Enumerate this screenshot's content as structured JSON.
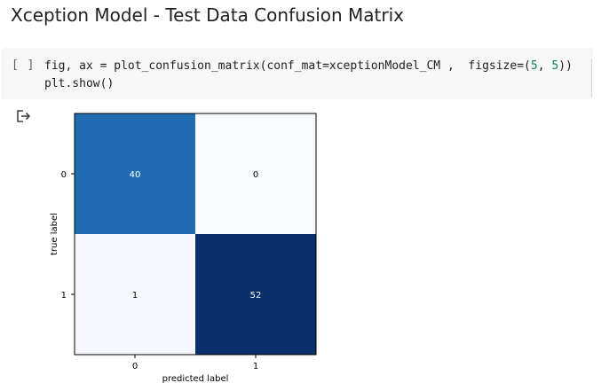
{
  "heading": {
    "title": "Xception Model - Test Data Confusion Matrix"
  },
  "code_cell": {
    "run_label": "[ ]",
    "line1_pre": "fig, ax = plot_confusion_matrix(conf_mat=xceptionModel_CM ,  figsize=(",
    "line1_num1": "5",
    "line1_mid": ", ",
    "line1_num2": "5",
    "line1_post": "))",
    "line2": "plt.show()"
  },
  "output": {
    "icon": "output-arrow-icon"
  },
  "chart_data": {
    "type": "heatmap",
    "xlabel": "predicted label",
    "ylabel": "true label",
    "x_tick_labels": [
      "0",
      "1"
    ],
    "y_tick_labels": [
      "0",
      "1"
    ],
    "matrix": [
      [
        40,
        0
      ],
      [
        1,
        52
      ]
    ],
    "cell_labels": [
      [
        "40",
        "0"
      ],
      [
        "1",
        "52"
      ]
    ],
    "colormap": "Blues",
    "cell_colors": [
      [
        "#1f6cb2",
        "#f7fbff"
      ],
      [
        "#f4f8fe",
        "#08306b"
      ]
    ],
    "text_colors": [
      [
        "#ffffff",
        "#000000"
      ],
      [
        "#000000",
        "#ffffff"
      ]
    ]
  }
}
